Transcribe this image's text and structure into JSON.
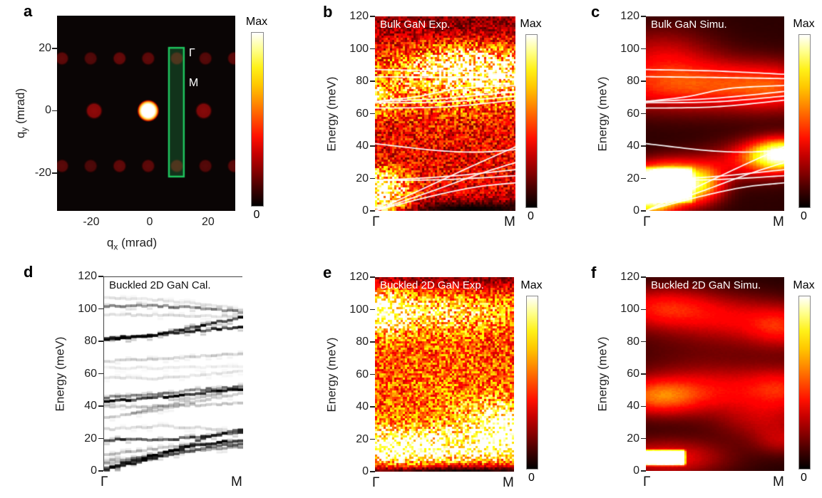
{
  "chart_data": {
    "colormap": "hot",
    "colormap_key_hex": [
      "#000000",
      "#b30000",
      "#ff6a00",
      "#ffe100",
      "#ffffff"
    ],
    "energy_axis": {
      "label": "Energy (meV)",
      "range": [
        0,
        120
      ],
      "ticks": [
        0,
        20,
        40,
        60,
        80,
        100,
        120
      ]
    },
    "k_path": [
      "Γ",
      "M"
    ],
    "bulk_phonon_branches_meV": [
      {
        "points": [
          [
            0,
            0
          ],
          [
            0.35,
            8
          ],
          [
            0.7,
            14.5
          ],
          [
            1,
            17.3
          ]
        ]
      },
      {
        "points": [
          [
            0,
            0
          ],
          [
            0.4,
            12
          ],
          [
            0.75,
            23
          ],
          [
            1,
            29.8
          ]
        ]
      },
      {
        "points": [
          [
            0,
            0
          ],
          [
            0.4,
            16
          ],
          [
            0.7,
            28
          ],
          [
            1,
            39.5
          ]
        ]
      },
      {
        "points": [
          [
            0,
            18.8
          ],
          [
            0.5,
            19.3
          ],
          [
            1,
            21.7
          ]
        ]
      },
      {
        "points": [
          [
            0,
            18.8
          ],
          [
            0.5,
            21.2
          ],
          [
            1,
            25.4
          ]
        ]
      },
      {
        "points": [
          [
            0,
            41.5
          ],
          [
            0.45,
            37.2
          ],
          [
            0.75,
            36.3
          ],
          [
            1,
            37.8
          ]
        ]
      },
      {
        "points": [
          [
            0,
            63.4
          ],
          [
            0.5,
            64.2
          ],
          [
            1,
            68.3
          ]
        ]
      },
      {
        "points": [
          [
            0,
            66.7
          ],
          [
            0.5,
            67.3
          ],
          [
            1,
            70.8
          ]
        ]
      },
      {
        "points": [
          [
            0,
            67.5
          ],
          [
            0.5,
            69.5
          ],
          [
            1,
            73.7
          ]
        ]
      },
      {
        "points": [
          [
            0,
            67.5
          ],
          [
            0.3,
            70.5
          ],
          [
            0.6,
            75.5
          ],
          [
            1,
            77.4
          ]
        ]
      },
      {
        "points": [
          [
            0,
            82.8
          ],
          [
            0.5,
            82.3
          ],
          [
            1,
            81.6
          ]
        ]
      },
      {
        "points": [
          [
            0,
            87.2
          ],
          [
            0.5,
            86.3
          ],
          [
            1,
            84.3
          ]
        ]
      }
    ],
    "buckled_2d_bands_meV": [
      {
        "points": [
          [
            0,
            19.5
          ],
          [
            0.5,
            20
          ],
          [
            0.78,
            22.5
          ],
          [
            1,
            24.5
          ]
        ],
        "alpha": 0.75
      },
      {
        "points": [
          [
            0,
            1
          ],
          [
            0.3,
            7
          ],
          [
            0.6,
            16
          ],
          [
            0.78,
            22.5
          ],
          [
            1,
            26.5
          ]
        ],
        "alpha": 0.8
      },
      {
        "points": [
          [
            0,
            2
          ],
          [
            0.35,
            10
          ],
          [
            0.7,
            17
          ],
          [
            1,
            19.5
          ]
        ],
        "alpha": 0.9
      },
      {
        "points": [
          [
            0,
            1
          ],
          [
            0.4,
            9
          ],
          [
            0.75,
            15
          ],
          [
            1,
            17.5
          ]
        ],
        "alpha": 0.6
      },
      {
        "points": [
          [
            0,
            5
          ],
          [
            0.3,
            9
          ],
          [
            0.6,
            13
          ],
          [
            1,
            15.5
          ]
        ],
        "alpha": 0.35
      },
      {
        "points": [
          [
            0,
            10
          ],
          [
            0.35,
            14
          ],
          [
            0.6,
            16.5
          ],
          [
            1,
            18.5
          ]
        ],
        "alpha": 0.3
      },
      {
        "points": [
          [
            0,
            7
          ],
          [
            0.2,
            8
          ],
          [
            0.4,
            10.5
          ]
        ],
        "alpha": 0.28
      },
      {
        "points": [
          [
            0,
            26
          ],
          [
            0.4,
            28
          ],
          [
            0.7,
            27
          ],
          [
            1,
            24
          ]
        ],
        "alpha": 0.15
      },
      {
        "points": [
          [
            0,
            33
          ],
          [
            0.4,
            38
          ],
          [
            0.75,
            45
          ],
          [
            1,
            48
          ]
        ],
        "alpha": 0.2
      },
      {
        "points": [
          [
            0,
            40.5
          ],
          [
            0.3,
            40
          ],
          [
            0.6,
            41
          ],
          [
            1,
            42
          ]
        ],
        "alpha": 0.22
      },
      {
        "points": [
          [
            0,
            43
          ],
          [
            0.35,
            45.5
          ],
          [
            0.7,
            48.5
          ],
          [
            1,
            51
          ]
        ],
        "alpha": 0.95
      },
      {
        "points": [
          [
            0,
            45.8
          ],
          [
            0.4,
            48
          ],
          [
            0.75,
            51
          ],
          [
            1,
            52.5
          ]
        ],
        "alpha": 0.5
      },
      {
        "points": [
          [
            0.2,
            36
          ],
          [
            0.5,
            42
          ],
          [
            0.8,
            48
          ],
          [
            1,
            52
          ]
        ],
        "alpha": 0.28
      },
      {
        "points": [
          [
            0,
            58
          ],
          [
            0.4,
            57.5
          ],
          [
            0.8,
            60.5
          ],
          [
            1,
            62
          ]
        ],
        "alpha": 0.12
      },
      {
        "points": [
          [
            0,
            64
          ],
          [
            0.5,
            64
          ],
          [
            1,
            65
          ]
        ],
        "alpha": 0.08
      },
      {
        "points": [
          [
            0,
            68
          ],
          [
            0.5,
            70
          ],
          [
            1,
            73
          ]
        ],
        "alpha": 0.2
      },
      {
        "points": [
          [
            0,
            81.5
          ],
          [
            0.3,
            83.5
          ],
          [
            0.6,
            88.5
          ],
          [
            0.8,
            92
          ],
          [
            1,
            95.5
          ]
        ],
        "alpha": 0.95
      },
      {
        "points": [
          [
            0,
            82
          ],
          [
            0.4,
            84.5
          ],
          [
            0.7,
            87
          ],
          [
            1,
            89.5
          ]
        ],
        "alpha": 0.85
      },
      {
        "points": [
          [
            0,
            97
          ],
          [
            0.4,
            96.5
          ],
          [
            1,
            95.8
          ]
        ],
        "alpha": 0.15
      },
      {
        "points": [
          [
            0,
            102
          ],
          [
            0.35,
            102.5
          ],
          [
            0.65,
            101
          ],
          [
            1,
            98.5
          ]
        ],
        "alpha": 0.5
      },
      {
        "points": [
          [
            0,
            107.5
          ],
          [
            0.35,
            106
          ],
          [
            0.7,
            103.5
          ],
          [
            1,
            100
          ]
        ],
        "alpha": 0.12
      }
    ],
    "blob_format": "[x_fraction_along_Γ-M, energy_meV, sigma_x, sigma_E, amplitude]",
    "rect_format": "[x0_fraction, x1_fraction, E0_meV, E1_meV, amplitude]",
    "panels": [
      {
        "letter": "a",
        "type": "diffraction_pattern",
        "title": "",
        "xlabel": {
          "base": "q",
          "sub": "x",
          "unit": " (mrad)"
        },
        "ylabel": {
          "base": "q",
          "sub": "y",
          "unit": " (mrad)"
        },
        "xticks": [
          -20,
          0,
          20
        ],
        "yticks": [
          -20,
          0,
          20
        ],
        "xlim": [
          -31.7,
          29.3
        ],
        "ylim": [
          -32.1,
          30.5
        ],
        "colorbar": {
          "max": "Max",
          "min": "0"
        },
        "bragg_spot_rows": [
          {
            "qy": 16.8,
            "qx": [
              -30,
              -20.2,
              -10.3,
              -0.5,
              9.3,
              19.1,
              28.9
            ],
            "intensity": [
              0.3,
              0.24,
              0.34,
              0.3,
              0.3,
              0.26,
              0.3
            ],
            "radius_mrad": 2.5
          },
          {
            "qy": 0,
            "qx": [
              -19,
              -0.5,
              18.5
            ],
            "intensity": [
              0.55,
              1.0,
              0.5
            ],
            "radius_mrad": 3.1
          },
          {
            "qy": -17.7,
            "qx": [
              -30,
              -20.2,
              -10.3,
              -0.5,
              9.3,
              19.1,
              28.9
            ],
            "intensity": [
              0.28,
              0.22,
              0.32,
              0.3,
              0.3,
              0.25,
              0.29
            ],
            "radius_mrad": 2.5
          }
        ],
        "roi": {
          "qx_range": [
            6.6,
            11.7
          ],
          "qy_range": [
            -21.1,
            20.2
          ],
          "stroke": "#1fc45e",
          "fill": "rgba(40,190,95,0.25)",
          "labels": [
            {
              "text": "Γ",
              "qx": 13.4,
              "qy": 18.4
            },
            {
              "text": "M",
              "qx": 13.4,
              "qy": 8.8
            }
          ]
        }
      },
      {
        "letter": "b",
        "type": "heatmap",
        "title": "Bulk GaN Exp.",
        "colorbar": {
          "max": "Max",
          "min": "0"
        },
        "base": 0.3,
        "noise": 0.55,
        "overlay": "bulk_phonon_branches_meV",
        "blobs": [
          [
            0.03,
            8,
            0.14,
            9,
            0.72
          ],
          [
            0.06,
            18,
            0.12,
            6,
            0.35
          ],
          [
            0.03,
            68,
            0.08,
            6,
            0.28
          ],
          [
            0.5,
            80,
            0.55,
            13,
            0.33
          ],
          [
            0.85,
            86,
            0.28,
            9,
            0.45
          ],
          [
            0.55,
            93,
            0.18,
            7,
            0.22
          ],
          [
            0.5,
            50,
            0.6,
            25,
            0.05
          ],
          [
            0.7,
            1,
            0.45,
            4,
            -0.3
          ],
          [
            0.5,
            117,
            0.6,
            7,
            -0.12
          ]
        ]
      },
      {
        "letter": "c",
        "type": "heatmap",
        "title": "Bulk GaN Simu.",
        "colorbar": {
          "max": "Max",
          "min": "0"
        },
        "base": 0.06,
        "noise": 0.03,
        "overlay": "bulk_phonon_branches_meV",
        "blobs": [
          [
            0.05,
            16,
            0.2,
            8,
            0.9
          ],
          [
            0.25,
            17,
            0.15,
            9,
            0.55
          ],
          [
            0.45,
            18,
            0.1,
            8,
            0.25
          ],
          [
            1.0,
            35,
            0.16,
            6.5,
            0.9
          ],
          [
            0.78,
            31,
            0.22,
            8,
            0.3
          ],
          [
            0.3,
            78,
            0.45,
            11,
            0.4
          ],
          [
            0.95,
            76,
            0.25,
            10,
            0.28
          ],
          [
            0.12,
            98,
            0.25,
            11,
            0.18
          ],
          [
            0.02,
            5,
            0.12,
            7,
            0.5
          ]
        ],
        "rects": [
          [
            0,
            0.36,
            4,
            28,
            0.3
          ]
        ]
      },
      {
        "letter": "d",
        "type": "band_structure",
        "title": "Buckled 2D GaN Cal.",
        "bands": "buckled_2d_bands_meV"
      },
      {
        "letter": "e",
        "type": "heatmap",
        "title": "Buckled 2D GaN Exp.",
        "colorbar": {
          "max": "Max",
          "min": "0"
        },
        "base": 0.4,
        "noise": 0.45,
        "blobs": [
          [
            0.12,
            15,
            0.28,
            9,
            0.5
          ],
          [
            0.5,
            13,
            0.45,
            8,
            0.38
          ],
          [
            0.95,
            24,
            0.17,
            11,
            0.55
          ],
          [
            0.5,
            55,
            0.8,
            30,
            0.1
          ],
          [
            0.35,
            98,
            0.5,
            9,
            0.38
          ],
          [
            0.03,
            99,
            0.12,
            9,
            0.5
          ],
          [
            0.75,
            32,
            0.22,
            12,
            0.18
          ],
          [
            0.5,
            0,
            0.9,
            4,
            -0.55
          ],
          [
            0.5,
            120,
            0.8,
            6,
            -0.25
          ]
        ]
      },
      {
        "letter": "f",
        "type": "heatmap",
        "title": "Buckled 2D GaN Simu.",
        "colorbar": {
          "max": "Max",
          "min": "0"
        },
        "base": 0.05,
        "noise": 0.03,
        "blobs": [
          [
            0.15,
            8,
            0.3,
            8,
            0.3
          ],
          [
            0.08,
            46,
            0.22,
            8,
            0.4
          ],
          [
            0.5,
            50,
            0.3,
            10,
            0.22
          ],
          [
            1,
            51,
            0.2,
            9,
            0.28
          ],
          [
            0.12,
            101,
            0.28,
            9,
            0.32
          ],
          [
            0.65,
            94,
            0.3,
            10,
            0.2
          ],
          [
            1,
            89,
            0.18,
            9,
            0.26
          ],
          [
            0.85,
            31,
            0.25,
            9,
            0.18
          ],
          [
            1,
            18,
            0.15,
            6,
            0.16
          ],
          [
            0.4,
            70,
            0.5,
            20,
            0.07
          ]
        ],
        "rects": [
          [
            0,
            0.3,
            2.5,
            14,
            1.05
          ]
        ]
      }
    ]
  }
}
